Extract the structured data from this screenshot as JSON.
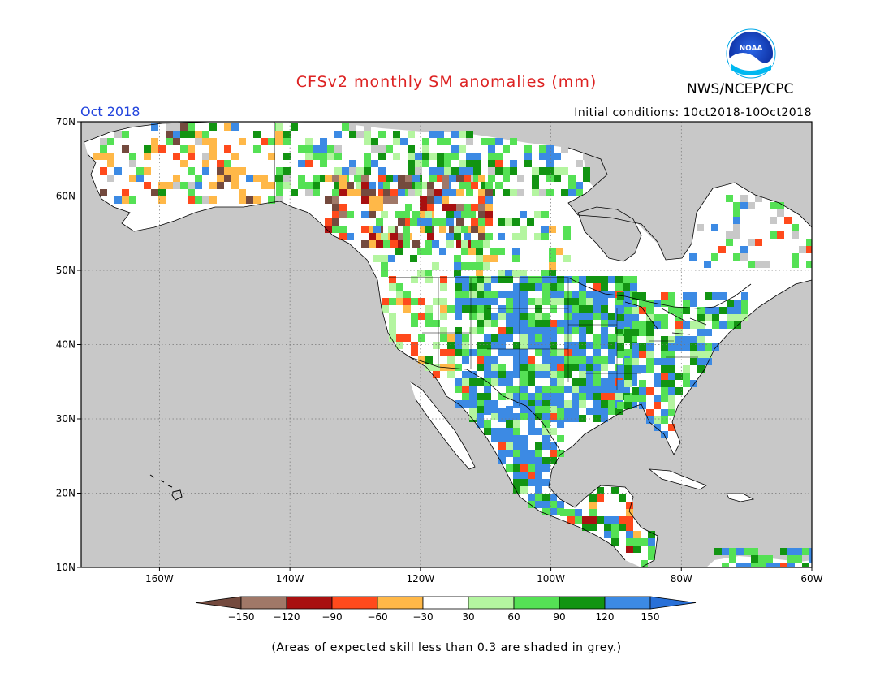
{
  "header": {
    "title": "CFSv2 monthly SM anomalies (mm)",
    "organization": "NWS/NCEP/CPC",
    "logo_text": "NOAA",
    "period": "Oct 2018",
    "initial_conditions": "Initial conditions: 10ct2018-10Oct2018"
  },
  "colors": {
    "title": "#dd2222",
    "period": "#2244dd",
    "ocean": "#c8c8c8",
    "land_white": "#ffffff",
    "grey_skill": "#c8c8c8"
  },
  "map": {
    "lon_range": [
      -172,
      -60
    ],
    "lat_range": [
      10,
      70
    ],
    "x_ticks": [
      "160W",
      "140W",
      "120W",
      "100W",
      "80W",
      "60W"
    ],
    "x_tick_values": [
      -160,
      -140,
      -120,
      -100,
      -80,
      -60
    ],
    "y_ticks": [
      "10N",
      "20N",
      "30N",
      "40N",
      "50N",
      "60N",
      "70N"
    ],
    "y_tick_values": [
      10,
      20,
      30,
      40,
      50,
      60,
      70
    ],
    "gridlines": true
  },
  "colorbar": {
    "labels": [
      "-150",
      "-120",
      "-90",
      "-60",
      "-30",
      "30",
      "60",
      "90",
      "120",
      "150"
    ],
    "colors": [
      "#744a3e",
      "#a07868",
      "#a81010",
      "#ff4a1c",
      "#ffb848",
      "#ffffff",
      "#b4f5a0",
      "#55e155",
      "#129412",
      "#3c8ae4",
      "#2870d8"
    ]
  },
  "footnote": "(Areas of expected skill less than 0.3 are shaded in grey.)"
}
